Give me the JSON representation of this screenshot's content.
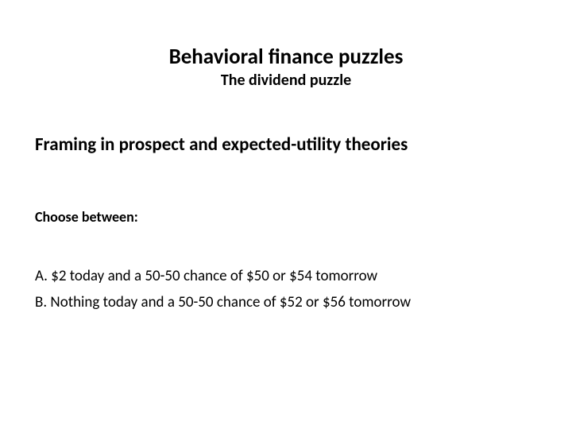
{
  "header": {
    "title": "Behavioral finance puzzles",
    "subtitle": "The dividend puzzle"
  },
  "section_heading": "Framing in prospect and expected-utility theories",
  "prompt": "Choose between:",
  "options": {
    "a": "A. $2 today and a 50-50 chance of $50 or $54 tomorrow",
    "b": "B.  Nothing today and a 50-50 chance of $52 or $56 tomorrow"
  },
  "colors": {
    "background": "#ffffff",
    "text": "#000000"
  },
  "typography": {
    "title_fontsize": 27,
    "subtitle_fontsize": 20,
    "heading_fontsize": 23,
    "prompt_fontsize": 18,
    "option_fontsize": 19,
    "font_family": "Calibri"
  }
}
